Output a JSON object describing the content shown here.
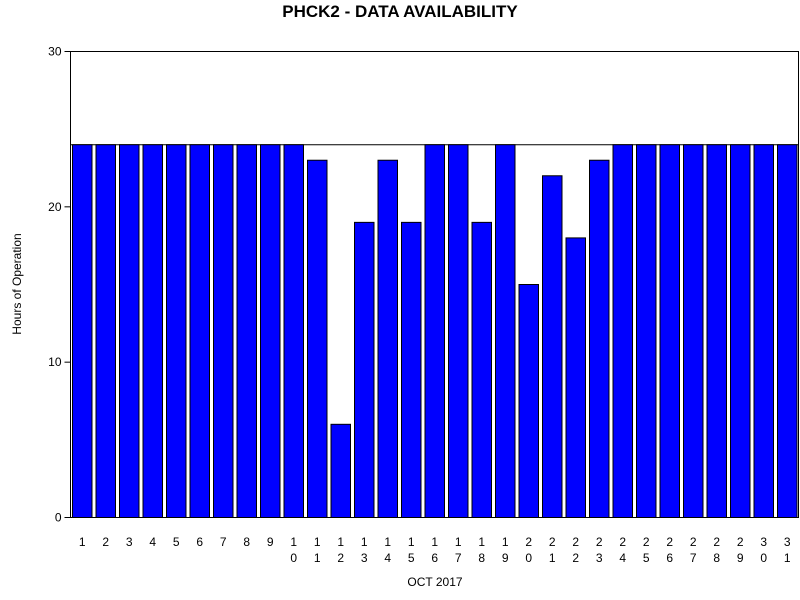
{
  "chart_data": {
    "type": "bar",
    "title": "PHCK2 - DATA AVAILABILITY",
    "xlabel": "OCT 2017",
    "ylabel": "Hours of Operation",
    "ylim": [
      0,
      30
    ],
    "yticks": [
      "0",
      "10",
      "20",
      "30"
    ],
    "reference_line": 24,
    "categories": [
      "1",
      "2",
      "3",
      "4",
      "5",
      "6",
      "7",
      "8",
      "9",
      "10",
      "11",
      "12",
      "13",
      "14",
      "15",
      "16",
      "17",
      "18",
      "19",
      "20",
      "21",
      "22",
      "23",
      "24",
      "25",
      "26",
      "27",
      "28",
      "29",
      "30",
      "31"
    ],
    "tick_labels": [
      [
        "1"
      ],
      [
        "2"
      ],
      [
        "3"
      ],
      [
        "4"
      ],
      [
        "5"
      ],
      [
        "6"
      ],
      [
        "7"
      ],
      [
        "8"
      ],
      [
        "9"
      ],
      [
        "1",
        "0"
      ],
      [
        "1",
        "1"
      ],
      [
        "1",
        "2"
      ],
      [
        "1",
        "3"
      ],
      [
        "1",
        "4"
      ],
      [
        "1",
        "5"
      ],
      [
        "1",
        "6"
      ],
      [
        "1",
        "7"
      ],
      [
        "1",
        "8"
      ],
      [
        "1",
        "9"
      ],
      [
        "2",
        "0"
      ],
      [
        "2",
        "1"
      ],
      [
        "2",
        "2"
      ],
      [
        "2",
        "3"
      ],
      [
        "2",
        "4"
      ],
      [
        "2",
        "5"
      ],
      [
        "2",
        "6"
      ],
      [
        "2",
        "7"
      ],
      [
        "2",
        "8"
      ],
      [
        "2",
        "9"
      ],
      [
        "3",
        "0"
      ],
      [
        "3",
        "1"
      ]
    ],
    "values": [
      24,
      24,
      24,
      24,
      24,
      24,
      24,
      24,
      24,
      24,
      23,
      6,
      19,
      23,
      19,
      24,
      24,
      19,
      24,
      15,
      22,
      18,
      23,
      24,
      24,
      24,
      24,
      24,
      24,
      24,
      24
    ],
    "bar_color": "#0000ff",
    "grid": false
  }
}
